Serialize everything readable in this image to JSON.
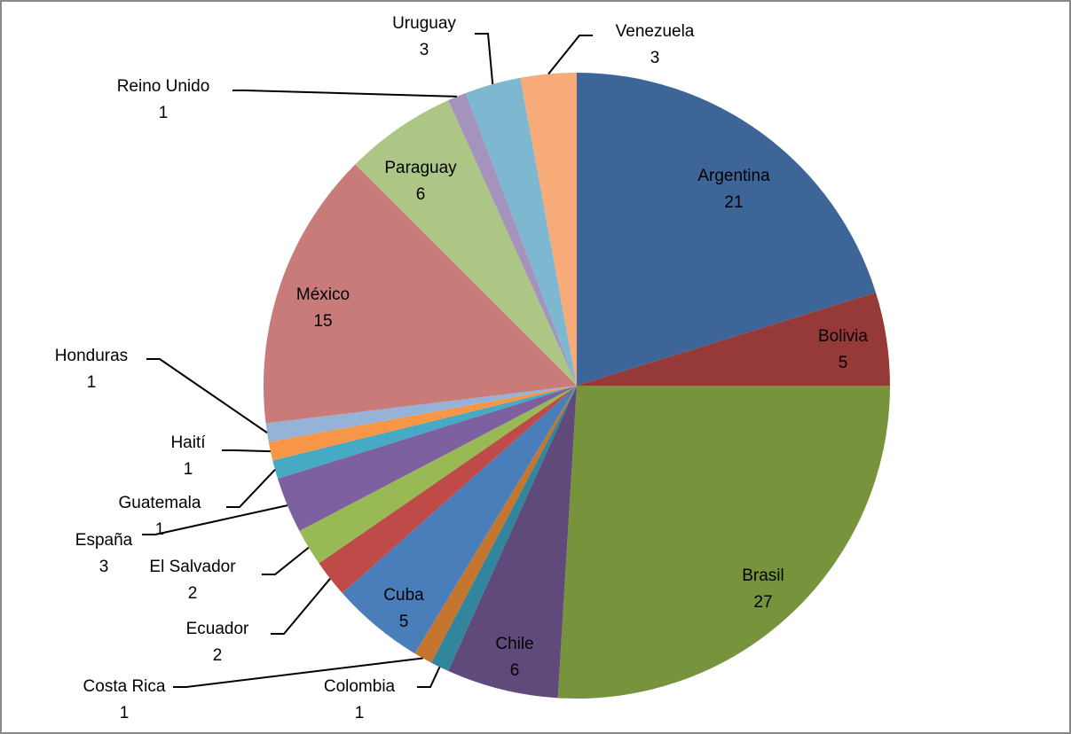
{
  "chart_data": {
    "type": "pie",
    "categories": [
      "Argentina",
      "Bolivia",
      "Brasil",
      "Chile",
      "Colombia",
      "Costa Rica",
      "Cuba",
      "Ecuador",
      "El Salvador",
      "España",
      "Guatemala",
      "Haití",
      "Honduras",
      "México",
      "Paraguay",
      "Reino Unido",
      "Uruguay",
      "Venezuela"
    ],
    "values": [
      21,
      5,
      27,
      6,
      1,
      1,
      5,
      2,
      2,
      3,
      1,
      1,
      1,
      15,
      6,
      1,
      3,
      3
    ],
    "colors": [
      "#3d6597",
      "#953a38",
      "#77933c",
      "#604a7b",
      "#31859c",
      "#c4762e",
      "#4a7ebb",
      "#be4b48",
      "#98b954",
      "#7d60a0",
      "#46aac5",
      "#f79646",
      "#95b3d7",
      "#c97b7a",
      "#aec685",
      "#a393bd",
      "#7eb8d0",
      "#f6ab78"
    ]
  }
}
